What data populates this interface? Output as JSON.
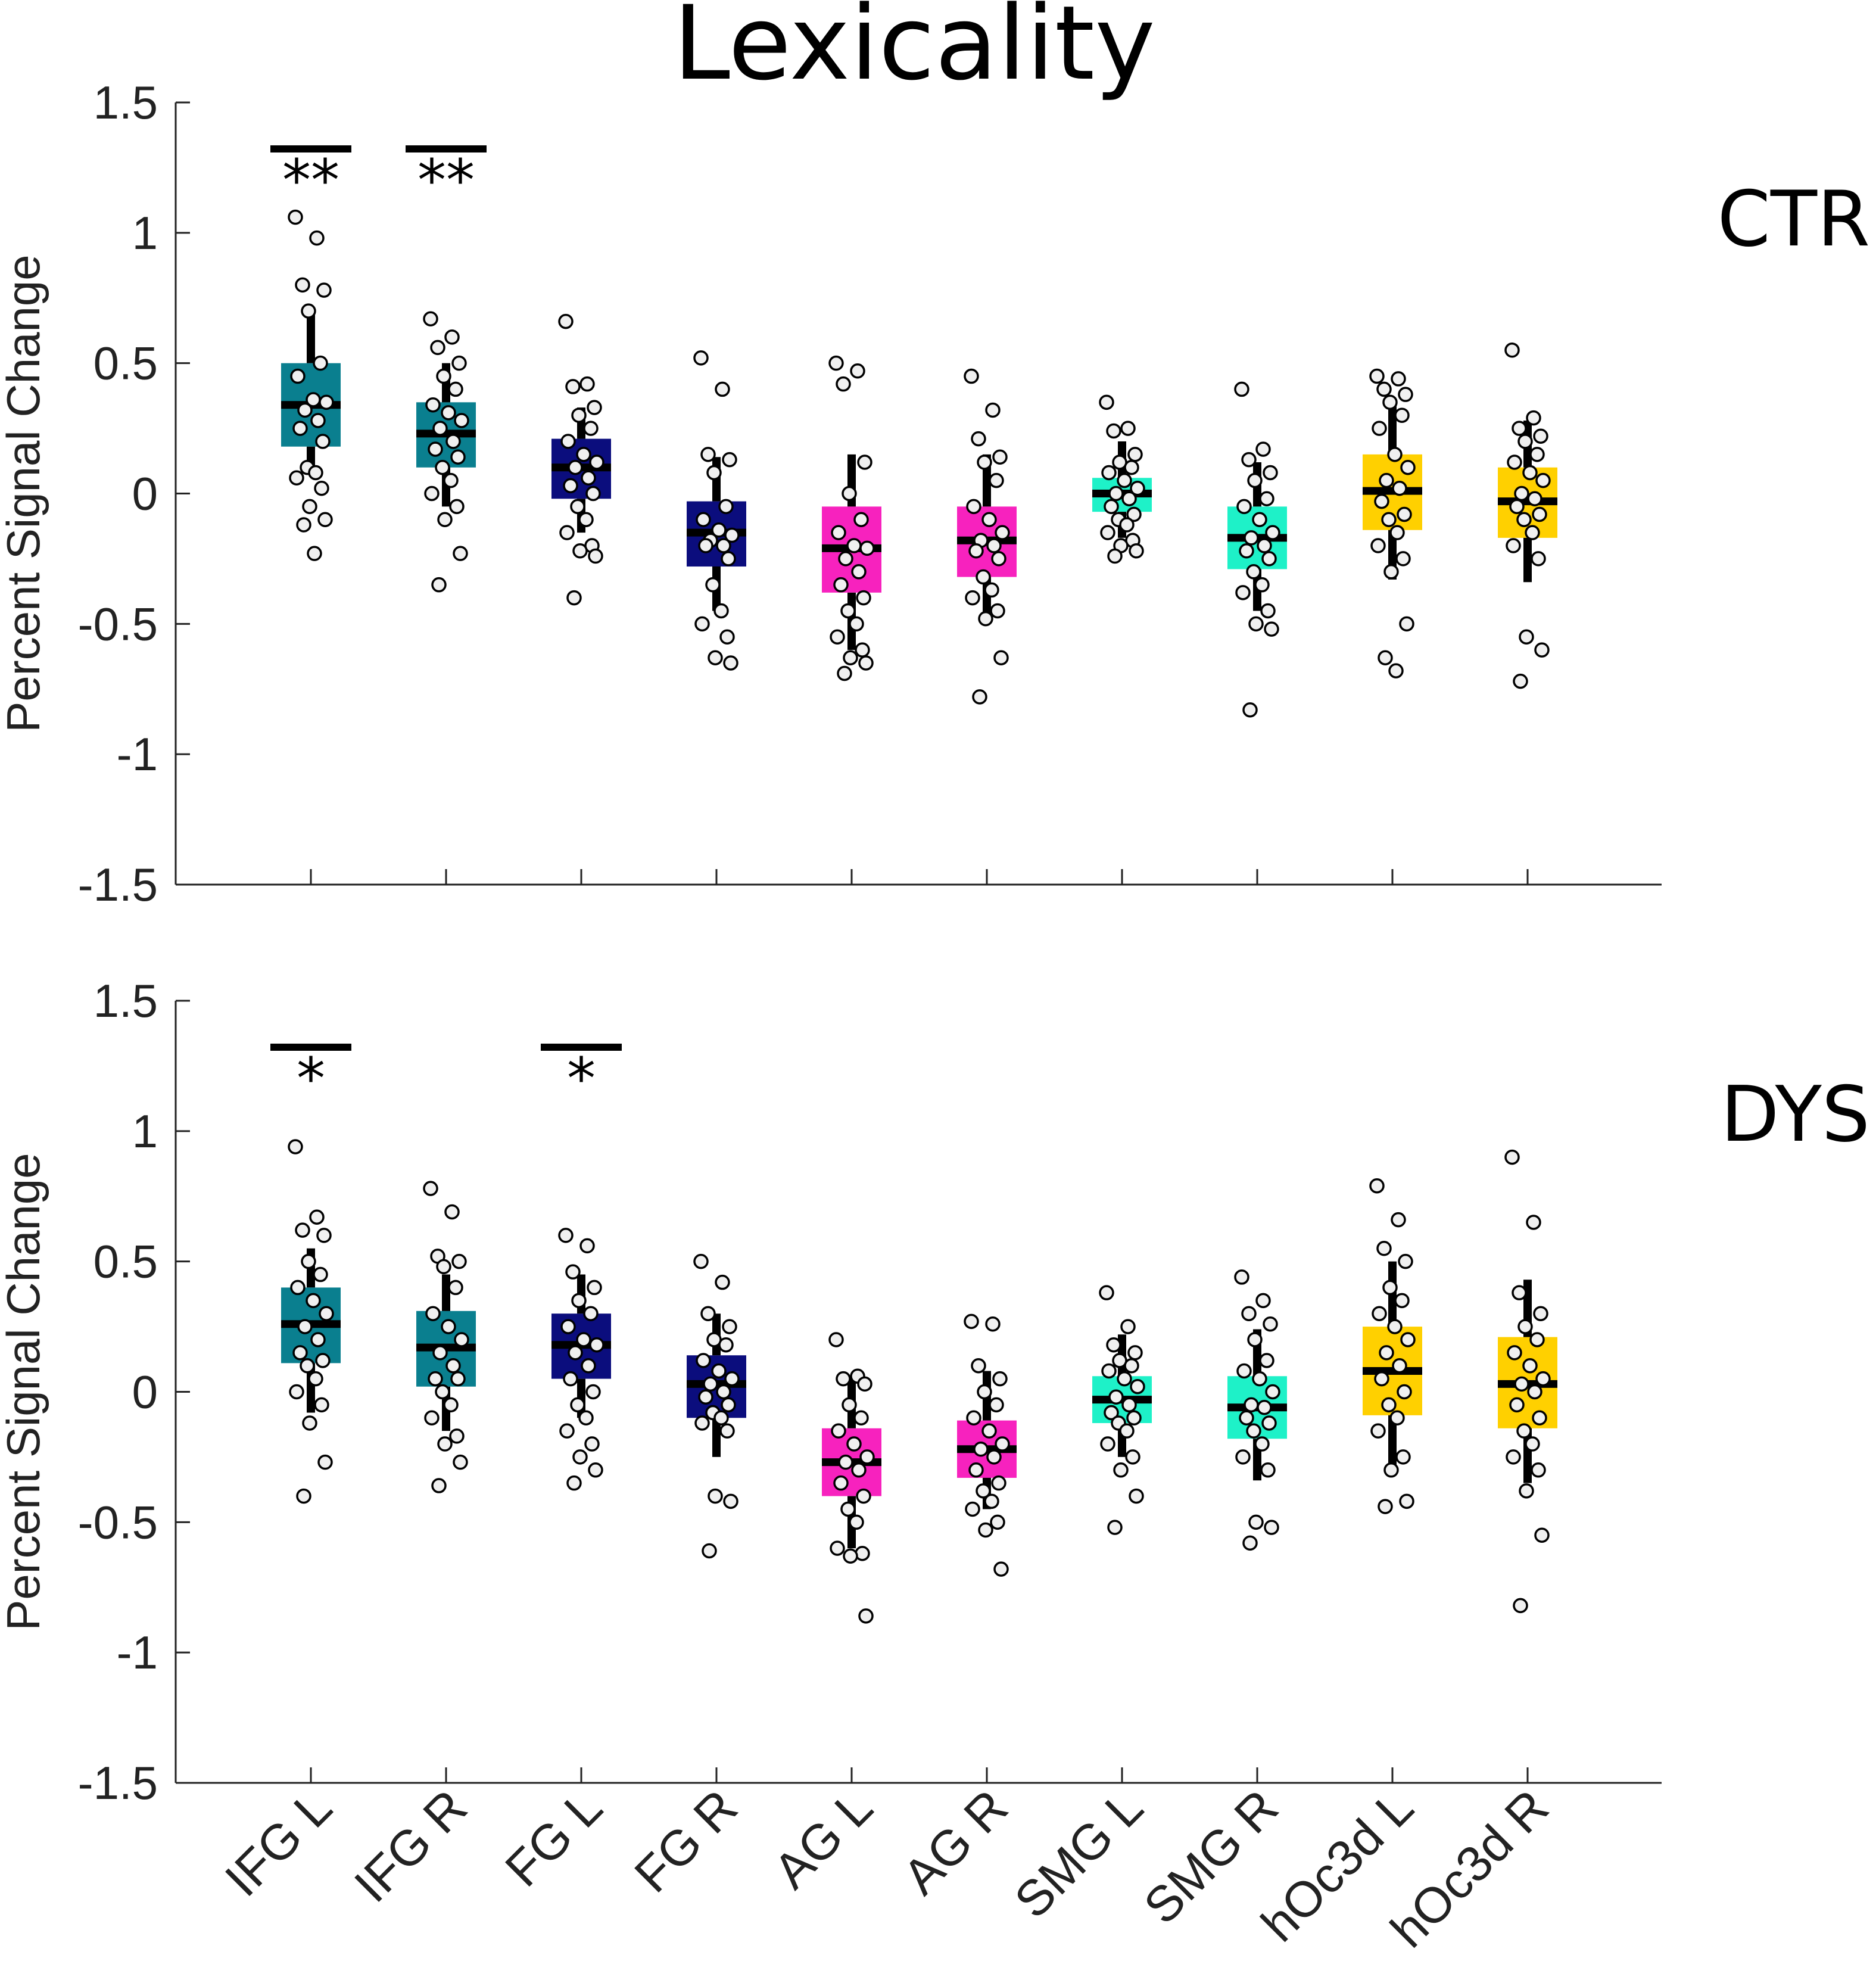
{
  "chart_data": {
    "type": "box",
    "title": "Lexicality",
    "ylabel": "Percent Signal Change",
    "ylim": [
      -1.5,
      1.5
    ],
    "yticks": [
      1.5,
      1,
      0.5,
      0,
      -0.5,
      -1,
      -1.5
    ],
    "ytick_labels": [
      "1.5",
      "1",
      "0.5",
      "0",
      "-0.5",
      "-1",
      "-1.5"
    ],
    "categories": [
      "IFG L",
      "IFG R",
      "FG L",
      "FG R",
      "AG L",
      "AG R",
      "SMG L",
      "SMG R",
      "hOc3d L",
      "hOc3d R"
    ],
    "colors": [
      "#0a7f8f",
      "#0a7f8f",
      "#0b0d7d",
      "#0b0d7d",
      "#f722be",
      "#f722be",
      "#1ef1c8",
      "#1ef1c8",
      "#ffd000",
      "#ffd000"
    ],
    "panels": [
      {
        "group": "CTR",
        "significance": [
          {
            "category": "IFG L",
            "label": "**"
          },
          {
            "category": "IFG R",
            "label": "**"
          }
        ],
        "boxes": [
          {
            "median": 0.34,
            "q1": 0.18,
            "q3": 0.5,
            "whisker_low": 0.08,
            "whisker_high": 0.7,
            "points": [
              1.06,
              0.98,
              0.8,
              0.78,
              0.7,
              0.5,
              0.45,
              0.36,
              0.35,
              0.32,
              0.28,
              0.25,
              0.2,
              0.1,
              0.08,
              0.06,
              0.02,
              -0.05,
              -0.1,
              -0.12,
              -0.23
            ]
          },
          {
            "median": 0.23,
            "q1": 0.1,
            "q3": 0.35,
            "whisker_low": -0.05,
            "whisker_high": 0.5,
            "points": [
              0.67,
              0.6,
              0.56,
              0.5,
              0.45,
              0.4,
              0.34,
              0.31,
              0.28,
              0.25,
              0.2,
              0.17,
              0.14,
              0.1,
              0.05,
              0.0,
              -0.05,
              -0.1,
              -0.23,
              -0.35
            ]
          },
          {
            "median": 0.1,
            "q1": -0.02,
            "q3": 0.21,
            "whisker_low": -0.15,
            "whisker_high": 0.33,
            "points": [
              0.66,
              0.42,
              0.41,
              0.33,
              0.3,
              0.25,
              0.2,
              0.15,
              0.12,
              0.1,
              0.06,
              0.03,
              0.0,
              -0.05,
              -0.1,
              -0.15,
              -0.2,
              -0.22,
              -0.24,
              -0.4
            ]
          },
          {
            "median": -0.15,
            "q1": -0.28,
            "q3": -0.03,
            "whisker_low": -0.45,
            "whisker_high": 0.14,
            "points": [
              0.52,
              0.4,
              0.15,
              0.13,
              0.08,
              -0.05,
              -0.1,
              -0.14,
              -0.16,
              -0.18,
              -0.2,
              -0.2,
              -0.25,
              -0.35,
              -0.45,
              -0.5,
              -0.55,
              -0.63,
              -0.65
            ]
          },
          {
            "median": -0.21,
            "q1": -0.38,
            "q3": -0.05,
            "whisker_low": -0.6,
            "whisker_high": 0.15,
            "points": [
              0.5,
              0.47,
              0.42,
              0.12,
              0.0,
              -0.1,
              -0.15,
              -0.2,
              -0.21,
              -0.25,
              -0.3,
              -0.35,
              -0.4,
              -0.45,
              -0.5,
              -0.55,
              -0.6,
              -0.63,
              -0.65,
              -0.69
            ]
          },
          {
            "median": -0.18,
            "q1": -0.32,
            "q3": -0.05,
            "whisker_low": -0.48,
            "whisker_high": 0.15,
            "points": [
              0.45,
              0.32,
              0.21,
              0.14,
              0.12,
              0.05,
              -0.05,
              -0.1,
              -0.15,
              -0.18,
              -0.2,
              -0.22,
              -0.25,
              -0.32,
              -0.37,
              -0.4,
              -0.45,
              -0.48,
              -0.63,
              -0.78
            ]
          },
          {
            "median": 0.0,
            "q1": -0.07,
            "q3": 0.06,
            "whisker_low": -0.17,
            "whisker_high": 0.2,
            "points": [
              0.35,
              0.25,
              0.24,
              0.15,
              0.12,
              0.1,
              0.08,
              0.05,
              0.02,
              0.0,
              -0.02,
              -0.05,
              -0.08,
              -0.1,
              -0.12,
              -0.15,
              -0.18,
              -0.2,
              -0.22,
              -0.24
            ]
          },
          {
            "median": -0.17,
            "q1": -0.29,
            "q3": -0.05,
            "whisker_low": -0.45,
            "whisker_high": 0.12,
            "points": [
              0.4,
              0.17,
              0.13,
              0.08,
              0.05,
              -0.02,
              -0.05,
              -0.1,
              -0.15,
              -0.17,
              -0.2,
              -0.22,
              -0.25,
              -0.3,
              -0.35,
              -0.38,
              -0.45,
              -0.5,
              -0.52,
              -0.83
            ]
          },
          {
            "median": 0.01,
            "q1": -0.14,
            "q3": 0.15,
            "whisker_low": -0.33,
            "whisker_high": 0.35,
            "points": [
              0.45,
              0.44,
              0.4,
              0.38,
              0.35,
              0.3,
              0.25,
              0.15,
              0.1,
              0.05,
              0.02,
              -0.03,
              -0.08,
              -0.1,
              -0.15,
              -0.2,
              -0.25,
              -0.3,
              -0.5,
              -0.63,
              -0.68
            ]
          },
          {
            "median": -0.03,
            "q1": -0.17,
            "q3": 0.1,
            "whisker_low": -0.34,
            "whisker_high": 0.28,
            "points": [
              0.55,
              0.29,
              0.25,
              0.22,
              0.2,
              0.15,
              0.12,
              0.08,
              0.05,
              0.0,
              -0.02,
              -0.05,
              -0.08,
              -0.1,
              -0.15,
              -0.2,
              -0.25,
              -0.55,
              -0.6,
              -0.72
            ]
          }
        ]
      },
      {
        "group": "DYS",
        "significance": [
          {
            "category": "IFG L",
            "label": "*"
          },
          {
            "category": "FG L",
            "label": "*"
          }
        ],
        "boxes": [
          {
            "median": 0.26,
            "q1": 0.11,
            "q3": 0.4,
            "whisker_low": -0.08,
            "whisker_high": 0.55,
            "points": [
              0.94,
              0.67,
              0.62,
              0.6,
              0.5,
              0.45,
              0.4,
              0.35,
              0.3,
              0.25,
              0.2,
              0.15,
              0.12,
              0.1,
              0.05,
              0.0,
              -0.05,
              -0.12,
              -0.27,
              -0.4
            ]
          },
          {
            "median": 0.17,
            "q1": 0.02,
            "q3": 0.31,
            "whisker_low": -0.15,
            "whisker_high": 0.45,
            "points": [
              0.78,
              0.69,
              0.52,
              0.5,
              0.48,
              0.4,
              0.3,
              0.25,
              0.2,
              0.15,
              0.1,
              0.05,
              0.05,
              0.0,
              -0.05,
              -0.1,
              -0.17,
              -0.2,
              -0.27,
              -0.36
            ]
          },
          {
            "median": 0.18,
            "q1": 0.05,
            "q3": 0.3,
            "whisker_low": -0.1,
            "whisker_high": 0.45,
            "points": [
              0.6,
              0.56,
              0.46,
              0.4,
              0.35,
              0.3,
              0.25,
              0.2,
              0.18,
              0.15,
              0.1,
              0.05,
              0.0,
              -0.05,
              -0.1,
              -0.15,
              -0.2,
              -0.25,
              -0.3,
              -0.35
            ]
          },
          {
            "median": 0.03,
            "q1": -0.1,
            "q3": 0.14,
            "whisker_low": -0.25,
            "whisker_high": 0.3,
            "points": [
              0.5,
              0.42,
              0.3,
              0.25,
              0.2,
              0.18,
              0.12,
              0.08,
              0.05,
              0.03,
              0.0,
              -0.02,
              -0.05,
              -0.08,
              -0.1,
              -0.12,
              -0.15,
              -0.4,
              -0.42,
              -0.61
            ]
          },
          {
            "median": -0.27,
            "q1": -0.4,
            "q3": -0.14,
            "whisker_low": -0.6,
            "whisker_high": 0.05,
            "points": [
              0.2,
              0.06,
              0.05,
              0.03,
              -0.05,
              -0.1,
              -0.15,
              -0.2,
              -0.25,
              -0.27,
              -0.3,
              -0.35,
              -0.4,
              -0.45,
              -0.5,
              -0.6,
              -0.62,
              -0.63,
              -0.86
            ]
          },
          {
            "median": -0.22,
            "q1": -0.33,
            "q3": -0.11,
            "whisker_low": -0.45,
            "whisker_high": 0.08,
            "points": [
              0.27,
              0.26,
              0.1,
              0.05,
              0.0,
              -0.05,
              -0.1,
              -0.15,
              -0.2,
              -0.22,
              -0.25,
              -0.3,
              -0.35,
              -0.38,
              -0.42,
              -0.45,
              -0.5,
              -0.53,
              -0.68
            ]
          },
          {
            "median": -0.03,
            "q1": -0.12,
            "q3": 0.06,
            "whisker_low": -0.25,
            "whisker_high": 0.22,
            "points": [
              0.38,
              0.25,
              0.18,
              0.15,
              0.12,
              0.1,
              0.08,
              0.05,
              0.02,
              -0.02,
              -0.05,
              -0.08,
              -0.1,
              -0.12,
              -0.15,
              -0.2,
              -0.25,
              -0.3,
              -0.4,
              -0.52
            ]
          },
          {
            "median": -0.06,
            "q1": -0.18,
            "q3": 0.06,
            "whisker_low": -0.34,
            "whisker_high": 0.24,
            "points": [
              0.44,
              0.35,
              0.3,
              0.26,
              0.2,
              0.12,
              0.08,
              0.05,
              0.0,
              -0.05,
              -0.06,
              -0.1,
              -0.12,
              -0.15,
              -0.2,
              -0.25,
              -0.3,
              -0.5,
              -0.52,
              -0.58
            ]
          },
          {
            "median": 0.08,
            "q1": -0.09,
            "q3": 0.25,
            "whisker_low": -0.3,
            "whisker_high": 0.5,
            "points": [
              0.79,
              0.66,
              0.55,
              0.5,
              0.4,
              0.35,
              0.3,
              0.25,
              0.2,
              0.15,
              0.1,
              0.05,
              0.0,
              -0.05,
              -0.1,
              -0.15,
              -0.25,
              -0.3,
              -0.42,
              -0.44
            ]
          },
          {
            "median": 0.03,
            "q1": -0.14,
            "q3": 0.21,
            "whisker_low": -0.35,
            "whisker_high": 0.43,
            "points": [
              0.9,
              0.65,
              0.38,
              0.3,
              0.25,
              0.2,
              0.15,
              0.1,
              0.05,
              0.03,
              0.0,
              -0.05,
              -0.1,
              -0.15,
              -0.2,
              -0.25,
              -0.3,
              -0.38,
              -0.55,
              -0.82
            ]
          }
        ]
      }
    ]
  }
}
